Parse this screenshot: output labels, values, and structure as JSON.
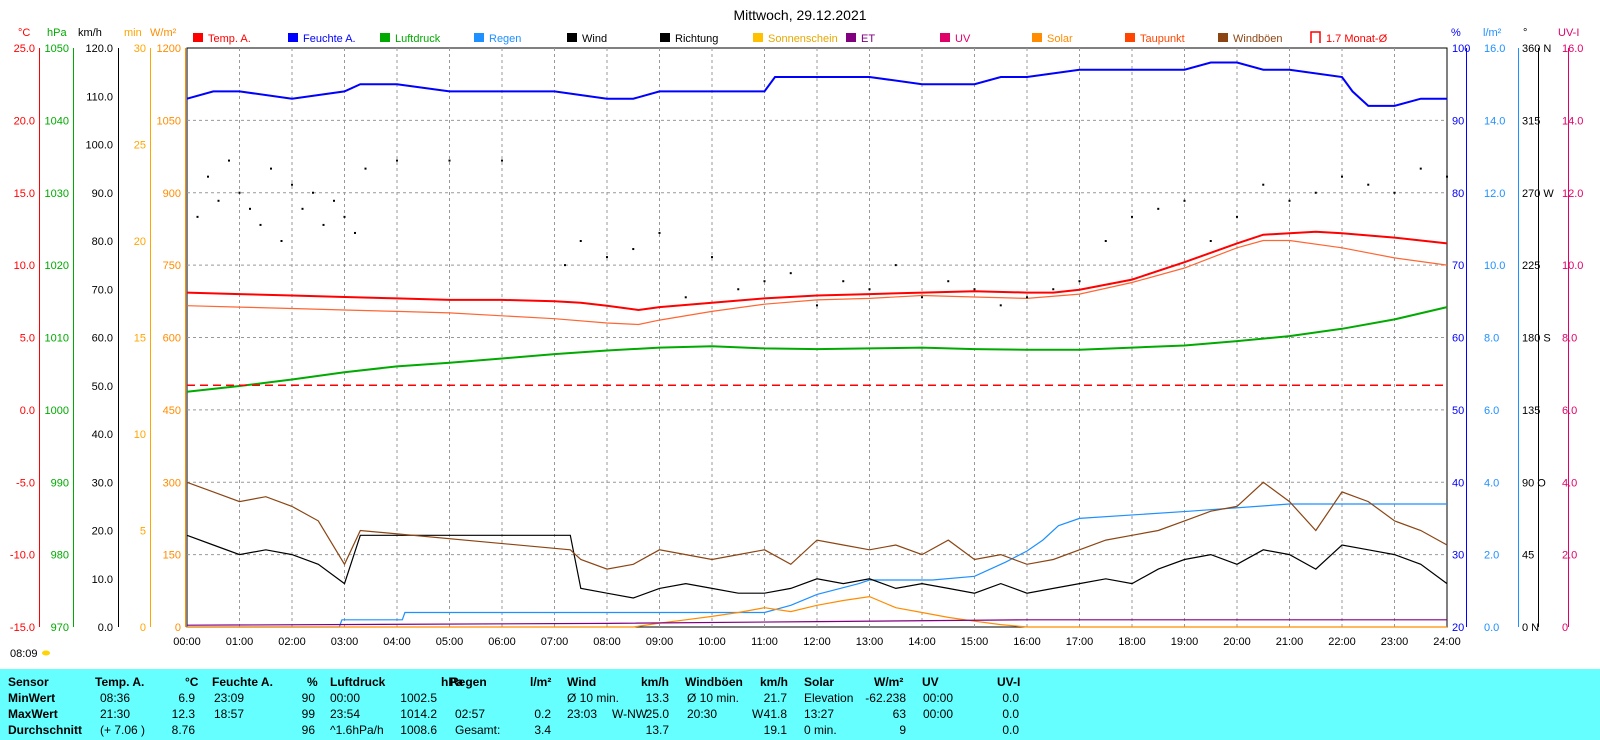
{
  "title": "Mittwoch, 29.12.2021",
  "legend": [
    {
      "label": "Temp. A.",
      "color": "#ff0000",
      "type": "box"
    },
    {
      "label": "Feuchte A.",
      "color": "#0000ff",
      "type": "box"
    },
    {
      "label": "Luftdruck",
      "color": "#00aa00",
      "type": "box"
    },
    {
      "label": "Regen",
      "color": "#1e90ff",
      "type": "box"
    },
    {
      "label": "Wind",
      "color": "#000000",
      "type": "box"
    },
    {
      "label": "Richtung",
      "color": "#000000",
      "type": "box"
    },
    {
      "label": "Sonnenschein",
      "color": "#ffc000",
      "type": "box"
    },
    {
      "label": "ET",
      "color": "#800080",
      "type": "box"
    },
    {
      "label": "UV",
      "color": "#e0006a",
      "type": "box"
    },
    {
      "label": "Solar",
      "color": "#ff8c00",
      "type": "box"
    },
    {
      "label": "Taupunkt",
      "color": "#ff4500",
      "type": "box"
    },
    {
      "label": "Windböen",
      "color": "#8b4513",
      "type": "box"
    },
    {
      "label": "1.7 Monat-Ø",
      "color": "#ff0000",
      "type": "bracket"
    }
  ],
  "axis_units": {
    "temp": "°C",
    "hpa_label": "hPa",
    "kmh": "km/h",
    "min": "min",
    "wm2": "W/m²",
    "percent": "%",
    "lm2": "l/m²",
    "deg": "°",
    "uvi": "UV-I"
  },
  "axes": {
    "temp": [
      "25.0",
      "20.0",
      "15.0",
      "10.0",
      "5.0",
      "0.0",
      "-5.0",
      "-10.0",
      "-15.0"
    ],
    "hpa": [
      "1050",
      "1040",
      "1030",
      "1020",
      "1010",
      "1000",
      "990",
      "980",
      "970"
    ],
    "kmh": [
      "120.0",
      "110.0",
      "100.0",
      "90.0",
      "80.0",
      "70.0",
      "60.0",
      "50.0",
      "40.0",
      "30.0",
      "20.0",
      "10.0",
      "0.0"
    ],
    "min": [
      "30",
      "25",
      "20",
      "15",
      "10",
      "5",
      "0"
    ],
    "wm2": [
      "1200",
      "1050",
      "900",
      "750",
      "600",
      "450",
      "300",
      "150",
      "0"
    ],
    "percent": [
      "100",
      "90",
      "80",
      "70",
      "60",
      "50",
      "40",
      "30",
      "20"
    ],
    "lm2": [
      "16.0",
      "14.0",
      "12.0",
      "10.0",
      "8.0",
      "6.0",
      "4.0",
      "2.0",
      "0.0"
    ],
    "deg": [
      "360 N",
      "315",
      "270 W",
      "225",
      "180 S",
      "135",
      "90 O",
      "45",
      "0 N"
    ],
    "uvi": [
      "16.0",
      "14.0",
      "12.0",
      "10.0",
      "8.0",
      "6.0",
      "4.0",
      "2.0",
      "0"
    ]
  },
  "time_ticks": [
    "00:00",
    "01:00",
    "02:00",
    "03:00",
    "04:00",
    "05:00",
    "06:00",
    "07:00",
    "08:00",
    "09:00",
    "10:00",
    "11:00",
    "12:00",
    "13:00",
    "14:00",
    "15:00",
    "16:00",
    "17:00",
    "18:00",
    "19:00",
    "20:00",
    "21:00",
    "22:00",
    "23:00",
    "24:00"
  ],
  "sunrise": "08:09",
  "chart_data": {
    "type": "line",
    "title": "Mittwoch, 29.12.2021",
    "x_unit": "hours",
    "xlim": [
      0,
      24
    ],
    "series": [
      {
        "name": "Temp. A.",
        "unit": "°C",
        "color": "#ff0000",
        "x": [
          0,
          1,
          2,
          3,
          4,
          5,
          6,
          7,
          7.5,
          8,
          8.6,
          9,
          10,
          11,
          12,
          13,
          14,
          15,
          16,
          16.5,
          17,
          18,
          19,
          20,
          20.5,
          21,
          21.5,
          22,
          23,
          24
        ],
        "y": [
          8.1,
          8.0,
          7.9,
          7.8,
          7.7,
          7.6,
          7.6,
          7.5,
          7.4,
          7.2,
          6.9,
          7.1,
          7.4,
          7.7,
          7.9,
          8.0,
          8.1,
          8.2,
          8.1,
          8.1,
          8.3,
          9.0,
          10.2,
          11.5,
          12.1,
          12.2,
          12.3,
          12.2,
          11.9,
          11.5
        ]
      },
      {
        "name": "Taupunkt",
        "unit": "°C",
        "color": "#ff6633",
        "x": [
          0,
          1,
          2,
          3,
          4,
          5,
          6,
          7,
          8,
          8.6,
          9,
          10,
          11,
          12,
          13,
          14,
          15,
          16,
          17,
          18,
          19,
          20,
          20.5,
          21,
          22,
          23,
          24
        ],
        "y": [
          7.2,
          7.1,
          7.0,
          6.9,
          6.8,
          6.7,
          6.5,
          6.3,
          6.0,
          5.9,
          6.2,
          6.8,
          7.3,
          7.6,
          7.7,
          7.9,
          7.8,
          7.7,
          8.0,
          8.8,
          9.8,
          11.2,
          11.7,
          11.7,
          11.2,
          10.5,
          10.0
        ]
      },
      {
        "name": "Feuchte A.",
        "unit": "%",
        "color": "#0000ff",
        "x": [
          0,
          0.5,
          1,
          2,
          3,
          3.3,
          4,
          5,
          6,
          7,
          8,
          8.5,
          9,
          10,
          11,
          11.2,
          12,
          13,
          14,
          15,
          15.5,
          16,
          17,
          18,
          19,
          19.5,
          20,
          20.5,
          21,
          22,
          22.2,
          22.5,
          23,
          23.5,
          24
        ],
        "y": [
          93,
          94,
          94,
          93,
          94,
          95,
          95,
          94,
          94,
          94,
          93,
          93,
          94,
          94,
          94,
          96,
          96,
          96,
          95,
          95,
          96,
          96,
          97,
          97,
          97,
          98,
          98,
          97,
          97,
          96,
          94,
          92,
          92,
          93,
          93
        ]
      },
      {
        "name": "Luftdruck",
        "unit": "hPa",
        "color": "#00aa00",
        "x": [
          0,
          1,
          2,
          3,
          4,
          5,
          6,
          7,
          8,
          9,
          10,
          11,
          12,
          13,
          14,
          15,
          16,
          17,
          18,
          19,
          20,
          21,
          22,
          23,
          24
        ],
        "y": [
          1002.5,
          1003.3,
          1004.2,
          1005.2,
          1006.0,
          1006.5,
          1007.1,
          1007.7,
          1008.2,
          1008.6,
          1008.8,
          1008.5,
          1008.4,
          1008.5,
          1008.6,
          1008.4,
          1008.3,
          1008.3,
          1008.6,
          1008.9,
          1009.5,
          1010.2,
          1011.2,
          1012.5,
          1014.2
        ]
      },
      {
        "name": "Regen",
        "unit": "l/m²",
        "color": "#1e90ff",
        "x": [
          0,
          2.9,
          2.95,
          4.1,
          4.15,
          8,
          11.0,
          11.5,
          12,
          12.8,
          13.0,
          14.2,
          15.0,
          15.6,
          16,
          16.3,
          16.6,
          17,
          19.1,
          21.0,
          24
        ],
        "y": [
          0,
          0,
          0.2,
          0.2,
          0.4,
          0.4,
          0.4,
          0.6,
          0.9,
          1.2,
          1.3,
          1.3,
          1.4,
          1.8,
          2.1,
          2.4,
          2.8,
          3.0,
          3.2,
          3.4,
          3.4
        ]
      },
      {
        "name": "Wind",
        "unit": "km/h",
        "color": "#000000",
        "x": [
          0,
          0.5,
          1,
          1.5,
          2,
          2.5,
          3,
          3.3,
          4,
          5,
          6,
          7,
          7.3,
          7.5,
          8,
          8.5,
          9,
          9.5,
          10,
          10.5,
          11,
          11.5,
          12,
          12.5,
          13,
          13.5,
          14,
          14.5,
          15,
          15.5,
          16,
          16.5,
          17,
          17.5,
          18,
          18.5,
          19,
          19.5,
          20,
          20.5,
          21,
          21.5,
          22,
          22.5,
          23,
          23.5,
          24
        ],
        "y": [
          19,
          17,
          15,
          16,
          15,
          13,
          9,
          19,
          19,
          19,
          19,
          19,
          19,
          8,
          7,
          6,
          8,
          9,
          8,
          7,
          7,
          8,
          10,
          9,
          10,
          8,
          9,
          8,
          7,
          9,
          7,
          8,
          9,
          10,
          9,
          12,
          14,
          15,
          13,
          16,
          15,
          12,
          17,
          16,
          15,
          13,
          9
        ]
      },
      {
        "name": "Windböen",
        "unit": "km/h",
        "color": "#8b4513",
        "x": [
          0,
          0.5,
          1,
          1.5,
          2,
          2.5,
          3,
          3.3,
          7.3,
          7.5,
          8,
          8.5,
          9,
          9.5,
          10,
          10.5,
          11,
          11.5,
          12,
          12.5,
          13,
          13.5,
          14,
          14.5,
          15,
          15.5,
          16,
          16.5,
          17,
          17.5,
          18,
          18.5,
          19,
          19.5,
          20,
          20.5,
          21,
          21.5,
          22,
          22.5,
          23,
          23.5,
          24
        ],
        "y": [
          30,
          28,
          26,
          27,
          25,
          22,
          13,
          20,
          16,
          14,
          12,
          13,
          16,
          15,
          14,
          15,
          16,
          13,
          18,
          17,
          16,
          17,
          15,
          18,
          14,
          15,
          13,
          14,
          16,
          18,
          19,
          20,
          22,
          24,
          25,
          30,
          26,
          20,
          28,
          26,
          22,
          20,
          17
        ]
      },
      {
        "name": "Richtung",
        "unit": "°",
        "color": "#000000",
        "type": "scatter",
        "x": [
          0.2,
          0.4,
          0.6,
          0.8,
          1.0,
          1.2,
          1.4,
          1.6,
          1.8,
          2.0,
          2.2,
          2.4,
          2.6,
          2.8,
          3.0,
          3.2,
          3.4,
          4,
          5,
          6,
          7.2,
          7.5,
          8,
          8.5,
          9,
          9.5,
          10,
          10.5,
          11,
          11.5,
          12,
          12.5,
          13,
          13.5,
          14,
          14.5,
          15,
          15.5,
          16,
          16.5,
          17,
          17.5,
          18,
          18.5,
          19,
          19.5,
          20,
          20.5,
          21,
          21.5,
          22,
          22.5,
          23,
          23.5,
          24
        ],
        "y": [
          255,
          280,
          265,
          290,
          270,
          260,
          250,
          285,
          240,
          275,
          260,
          270,
          250,
          265,
          255,
          245,
          285,
          290,
          290,
          290,
          225,
          240,
          230,
          235,
          245,
          205,
          230,
          210,
          215,
          220,
          200,
          215,
          210,
          225,
          205,
          215,
          210,
          200,
          205,
          210,
          215,
          240,
          255,
          260,
          265,
          240,
          255,
          275,
          265,
          270,
          280,
          275,
          270,
          285,
          280
        ]
      },
      {
        "name": "Solar",
        "unit": "W/m²",
        "color": "#ff8c00",
        "x": [
          0,
          8.5,
          9,
          9.5,
          10,
          10.5,
          11,
          11.5,
          12,
          12.5,
          13,
          13.5,
          14,
          14.5,
          15,
          15.5,
          16,
          24
        ],
        "y": [
          0,
          0,
          8,
          15,
          22,
          30,
          40,
          32,
          45,
          55,
          63,
          40,
          30,
          20,
          12,
          5,
          0,
          0
        ]
      },
      {
        "name": "ET",
        "unit": "l/m²",
        "color": "#800080",
        "x": [
          0,
          8,
          12,
          16,
          24
        ],
        "y": [
          0.05,
          0.1,
          0.15,
          0.2,
          0.2
        ]
      },
      {
        "name": "1.7 Monat-Ø",
        "unit": "°C",
        "color": "#ff0000",
        "x": [
          0,
          24
        ],
        "y": [
          1.7,
          1.7
        ]
      }
    ]
  },
  "stats": {
    "headers": [
      "Sensor",
      "Temp. A.",
      "°C",
      "Feuchte A.",
      "%",
      "Luftdruck",
      "hPa",
      "Regen",
      "l/m²",
      "Wind",
      "km/h",
      "Windböen",
      "km/h",
      "Solar",
      "W/m²",
      "UV",
      "UV-I"
    ],
    "row_labels": [
      "MinWert",
      "MaxWert",
      "Durchschnitt"
    ],
    "temp_time": [
      "08:36",
      "21:30",
      "(+ 7.06 )"
    ],
    "temp_val": [
      "6.9",
      "12.3",
      "8.76"
    ],
    "hum_time": [
      "23:09",
      "18:57",
      ""
    ],
    "hum_val": [
      "90",
      "99",
      "96"
    ],
    "press_time": [
      "00:00",
      "23:54",
      "^1.6hPa/h"
    ],
    "press_val": [
      "1002.5",
      "1014.2",
      "1008.6"
    ],
    "rain_time": [
      "",
      "02:57",
      "Gesamt:"
    ],
    "rain_val": [
      "",
      "0.2",
      "3.4"
    ],
    "wind_time": [
      "Ø 10 min.",
      "23:03",
      ""
    ],
    "wind_dir": [
      "",
      "W-NW",
      ""
    ],
    "wind_val": [
      "13.3",
      "25.0",
      "13.7"
    ],
    "gust_time": [
      "Ø 10 min.",
      "20:30",
      ""
    ],
    "gust_dir": [
      "",
      "W",
      ""
    ],
    "gust_val": [
      "21.7",
      "41.8",
      "19.1"
    ],
    "solar_time": [
      "Elevation",
      "13:27",
      "0 min."
    ],
    "solar_val": [
      "-62.238",
      "63",
      "9"
    ],
    "uv_time": [
      "00:00",
      "00:00",
      ""
    ],
    "uv_val": [
      "0.0",
      "0.0",
      "0.0"
    ]
  }
}
